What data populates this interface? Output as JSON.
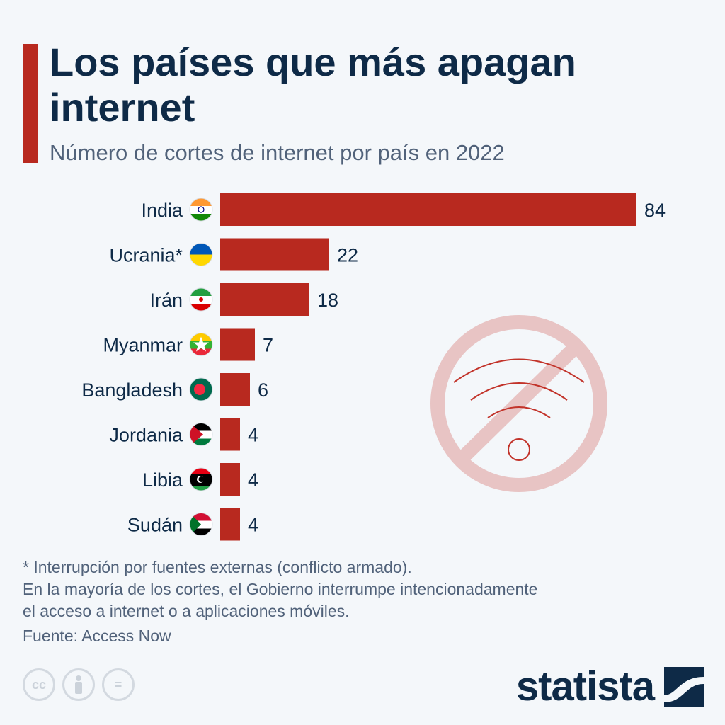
{
  "title": "Los países que más apagan internet",
  "subtitle": "Número de cortes de internet por país en 2022",
  "chart_data": {
    "type": "bar",
    "orientation": "horizontal",
    "title": "Los países que más apagan internet",
    "subtitle": "Número de cortes de internet por país en 2022",
    "categories": [
      "India",
      "Ucrania*",
      "Irán",
      "Myanmar",
      "Bangladesh",
      "Jordania",
      "Libia",
      "Sudán"
    ],
    "values": [
      84,
      22,
      18,
      7,
      6,
      4,
      4,
      4
    ],
    "value_labels": [
      "84",
      "22",
      "18",
      "7",
      "6",
      "4",
      "4",
      "4"
    ],
    "flag_icons": [
      "india-flag-icon",
      "ukraine-flag-icon",
      "iran-flag-icon",
      "myanmar-flag-icon",
      "bangladesh-flag-icon",
      "jordan-flag-icon",
      "libya-flag-icon",
      "sudan-flag-icon"
    ],
    "xlim": [
      0,
      84
    ],
    "grid": false,
    "bar_color": "#b8291f"
  },
  "decoration": {
    "icon": "no-wifi-icon",
    "color": "#e8c4c4"
  },
  "notes": {
    "footnote": "* Interrupción por fuentes externas (conflicto armado).",
    "line1": "En la mayoría de los cortes, el Gobierno interrumpe intencionadamente",
    "line2": "el acceso a internet o a aplicaciones móviles.",
    "source": "Fuente: Access Now"
  },
  "license": {
    "cc": "cc",
    "equal": "="
  },
  "brand": {
    "name": "statista"
  },
  "colors": {
    "title": "#0e2a47",
    "accent": "#b8291f",
    "text": "#51627a",
    "background": "#f4f7fa"
  }
}
